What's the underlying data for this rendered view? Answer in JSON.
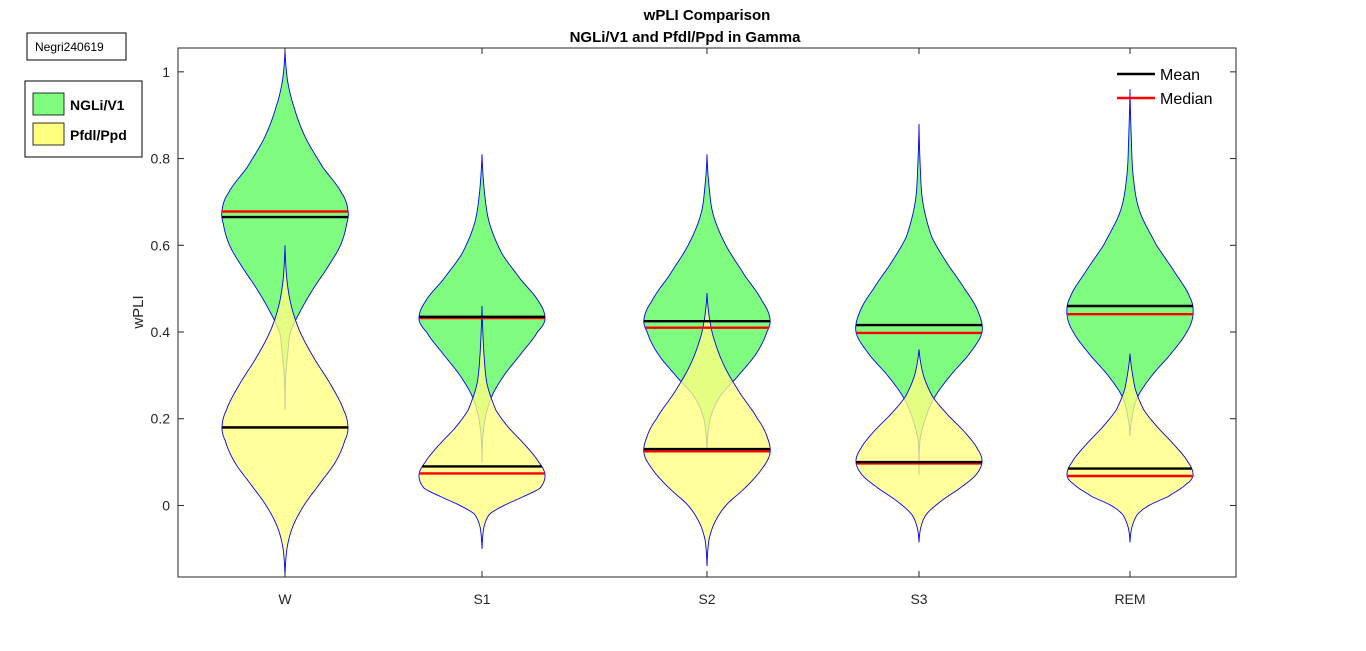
{
  "tag": "Negri240619",
  "colors": {
    "ngli_fill": "#7ffb7f",
    "pfdl_fill": "#ffff80",
    "overlap_fill": "#bfff40",
    "outline": "#0000ff",
    "mean": "#000000",
    "median": "#ff0000"
  },
  "chart_data": {
    "type": "violin",
    "title": "wPLI Comparison",
    "subtitle": "NGLi/V1 and Pfdl/Ppd in Gamma",
    "xlabel": "",
    "ylabel": "wPLI",
    "ylim": [
      -0.165,
      1.055
    ],
    "yticks": [
      0,
      0.2,
      0.4,
      0.6,
      0.8,
      1
    ],
    "ytick_labels": [
      "0",
      "0.2",
      "0.4",
      "0.6",
      "0.8",
      "1"
    ],
    "categories": [
      "W",
      "S1",
      "S2",
      "S3",
      "REM"
    ],
    "grid": false,
    "stat_legend": {
      "placement": "top-right",
      "entries": [
        "Mean",
        "Median"
      ]
    },
    "group_legend": {
      "placement": "outside-top-left",
      "entries": [
        "NGLi/V1",
        "Pfdl/Ppd"
      ]
    },
    "series": [
      {
        "name": "NGLi/V1",
        "violins": [
          {
            "category": "W",
            "min": 0.22,
            "max": 1.05,
            "mean": 0.665,
            "median": 0.678,
            "profile": [
              [
                0.22,
                0
              ],
              [
                0.3,
                0.012
              ],
              [
                0.36,
                0.05
              ],
              [
                0.4,
                0.09
              ],
              [
                0.45,
                0.25
              ],
              [
                0.5,
                0.45
              ],
              [
                0.55,
                0.68
              ],
              [
                0.6,
                0.88
              ],
              [
                0.65,
                0.98
              ],
              [
                0.68,
                1.0
              ],
              [
                0.72,
                0.9
              ],
              [
                0.78,
                0.6
              ],
              [
                0.85,
                0.32
              ],
              [
                0.92,
                0.14
              ],
              [
                0.98,
                0.04
              ],
              [
                1.05,
                0
              ]
            ]
          },
          {
            "category": "S1",
            "min": 0.1,
            "max": 0.81,
            "mean": 0.435,
            "median": 0.432,
            "profile": [
              [
                0.1,
                0
              ],
              [
                0.15,
                0.01
              ],
              [
                0.2,
                0.05
              ],
              [
                0.25,
                0.15
              ],
              [
                0.3,
                0.35
              ],
              [
                0.35,
                0.62
              ],
              [
                0.4,
                0.88
              ],
              [
                0.43,
                1.0
              ],
              [
                0.47,
                0.9
              ],
              [
                0.52,
                0.62
              ],
              [
                0.58,
                0.32
              ],
              [
                0.65,
                0.12
              ],
              [
                0.72,
                0.04
              ],
              [
                0.81,
                0
              ]
            ]
          },
          {
            "category": "S2",
            "min": 0.13,
            "max": 0.81,
            "mean": 0.425,
            "median": 0.41,
            "profile": [
              [
                0.13,
                0
              ],
              [
                0.2,
                0.05
              ],
              [
                0.25,
                0.2
              ],
              [
                0.3,
                0.5
              ],
              [
                0.35,
                0.78
              ],
              [
                0.4,
                0.95
              ],
              [
                0.43,
                1.0
              ],
              [
                0.47,
                0.88
              ],
              [
                0.53,
                0.6
              ],
              [
                0.6,
                0.3
              ],
              [
                0.67,
                0.1
              ],
              [
                0.74,
                0.03
              ],
              [
                0.81,
                0
              ]
            ]
          },
          {
            "category": "S3",
            "min": 0.07,
            "max": 0.88,
            "mean": 0.416,
            "median": 0.398,
            "profile": [
              [
                0.07,
                0
              ],
              [
                0.15,
                0.015
              ],
              [
                0.2,
                0.1
              ],
              [
                0.25,
                0.25
              ],
              [
                0.3,
                0.5
              ],
              [
                0.35,
                0.8
              ],
              [
                0.4,
                1.0
              ],
              [
                0.45,
                0.93
              ],
              [
                0.5,
                0.72
              ],
              [
                0.56,
                0.44
              ],
              [
                0.62,
                0.2
              ],
              [
                0.7,
                0.06
              ],
              [
                0.78,
                0.02
              ],
              [
                0.88,
                0
              ]
            ]
          },
          {
            "category": "REM",
            "min": 0.16,
            "max": 0.96,
            "mean": 0.46,
            "median": 0.441,
            "profile": [
              [
                0.16,
                0
              ],
              [
                0.2,
                0.03
              ],
              [
                0.25,
                0.12
              ],
              [
                0.3,
                0.35
              ],
              [
                0.35,
                0.65
              ],
              [
                0.4,
                0.9
              ],
              [
                0.44,
                1.0
              ],
              [
                0.48,
                0.95
              ],
              [
                0.54,
                0.7
              ],
              [
                0.6,
                0.42
              ],
              [
                0.68,
                0.15
              ],
              [
                0.76,
                0.05
              ],
              [
                0.85,
                0.02
              ],
              [
                0.96,
                0
              ]
            ]
          }
        ]
      },
      {
        "name": "Pfdl/Ppd",
        "violins": [
          {
            "category": "W",
            "min": -0.165,
            "max": 0.6,
            "mean": 0.18,
            "median": 0.18,
            "profile": [
              [
                -0.165,
                0
              ],
              [
                -0.1,
                0.03
              ],
              [
                -0.05,
                0.12
              ],
              [
                0.0,
                0.3
              ],
              [
                0.05,
                0.55
              ],
              [
                0.1,
                0.8
              ],
              [
                0.15,
                0.95
              ],
              [
                0.18,
                1.0
              ],
              [
                0.22,
                0.93
              ],
              [
                0.28,
                0.72
              ],
              [
                0.34,
                0.46
              ],
              [
                0.4,
                0.24
              ],
              [
                0.46,
                0.1
              ],
              [
                0.52,
                0.03
              ],
              [
                0.6,
                0
              ]
            ]
          },
          {
            "category": "S1",
            "min": -0.1,
            "max": 0.46,
            "mean": 0.09,
            "median": 0.074,
            "profile": [
              [
                -0.1,
                0
              ],
              [
                -0.05,
                0.03
              ],
              [
                -0.02,
                0.12
              ],
              [
                0.0,
                0.35
              ],
              [
                0.02,
                0.65
              ],
              [
                0.04,
                0.92
              ],
              [
                0.07,
                1.0
              ],
              [
                0.1,
                0.9
              ],
              [
                0.14,
                0.68
              ],
              [
                0.18,
                0.42
              ],
              [
                0.22,
                0.22
              ],
              [
                0.28,
                0.08
              ],
              [
                0.35,
                0.03
              ],
              [
                0.46,
                0
              ]
            ]
          },
          {
            "category": "S2",
            "min": -0.14,
            "max": 0.49,
            "mean": 0.13,
            "median": 0.125,
            "profile": [
              [
                -0.14,
                0
              ],
              [
                -0.08,
                0.03
              ],
              [
                -0.04,
                0.12
              ],
              [
                0.0,
                0.3
              ],
              [
                0.04,
                0.6
              ],
              [
                0.08,
                0.85
              ],
              [
                0.12,
                1.0
              ],
              [
                0.16,
                0.95
              ],
              [
                0.2,
                0.8
              ],
              [
                0.26,
                0.52
              ],
              [
                0.32,
                0.28
              ],
              [
                0.38,
                0.12
              ],
              [
                0.43,
                0.04
              ],
              [
                0.49,
                0
              ]
            ]
          },
          {
            "category": "S3",
            "min": -0.085,
            "max": 0.36,
            "mean": 0.1,
            "median": 0.097,
            "profile": [
              [
                -0.085,
                0
              ],
              [
                -0.05,
                0.03
              ],
              [
                -0.02,
                0.12
              ],
              [
                0.01,
                0.35
              ],
              [
                0.04,
                0.65
              ],
              [
                0.07,
                0.9
              ],
              [
                0.1,
                1.0
              ],
              [
                0.13,
                0.93
              ],
              [
                0.17,
                0.72
              ],
              [
                0.21,
                0.45
              ],
              [
                0.25,
                0.22
              ],
              [
                0.3,
                0.07
              ],
              [
                0.36,
                0
              ]
            ]
          },
          {
            "category": "REM",
            "min": -0.085,
            "max": 0.35,
            "mean": 0.085,
            "median": 0.068,
            "profile": [
              [
                -0.085,
                0
              ],
              [
                -0.05,
                0.03
              ],
              [
                -0.02,
                0.12
              ],
              [
                0.0,
                0.3
              ],
              [
                0.02,
                0.6
              ],
              [
                0.05,
                0.9
              ],
              [
                0.07,
                1.0
              ],
              [
                0.1,
                0.92
              ],
              [
                0.14,
                0.7
              ],
              [
                0.18,
                0.44
              ],
              [
                0.22,
                0.22
              ],
              [
                0.27,
                0.08
              ],
              [
                0.35,
                0
              ]
            ]
          }
        ]
      }
    ]
  }
}
